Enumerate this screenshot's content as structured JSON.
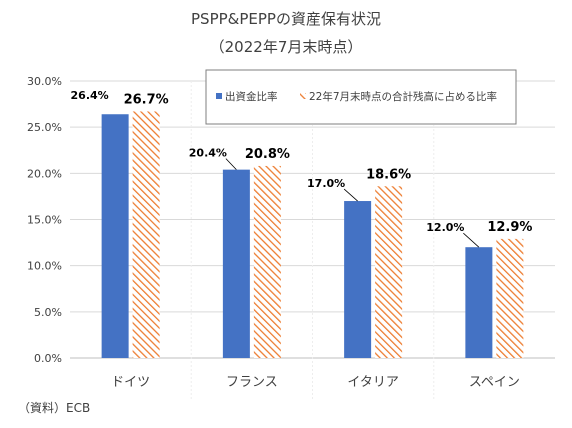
{
  "chart_data": {
    "type": "bar",
    "title": "PSPP&PEPPの資産保有状況",
    "subtitle": "（2022年7月末時点）",
    "categories": [
      "ドイツ",
      "フランス",
      "イタリア",
      "スペイン"
    ],
    "series": [
      {
        "name": "出資金比率",
        "values": [
          26.4,
          20.4,
          17.0,
          12.0
        ],
        "labels": [
          "26.4%",
          "20.4%",
          "17.0%",
          "12.0%"
        ],
        "color": "#4472C4",
        "pattern": "solid"
      },
      {
        "name": "22年7月末時点の合計残高に占める比率",
        "values": [
          26.7,
          20.8,
          18.6,
          12.9
        ],
        "labels": [
          "26.7%",
          "20.8%",
          "18.6%",
          "12.9%"
        ],
        "color": "#ED7D31",
        "pattern": "diagonal-hatch"
      }
    ],
    "ylim": [
      0,
      30
    ],
    "yticks": [
      "0.0%",
      "5.0%",
      "10.0%",
      "15.0%",
      "20.0%",
      "25.0%",
      "30.0%"
    ],
    "ytick_values": [
      0,
      5,
      10,
      15,
      20,
      25,
      30
    ],
    "grid": true,
    "legend_position": "top-right",
    "source": "（資料）ECB"
  }
}
